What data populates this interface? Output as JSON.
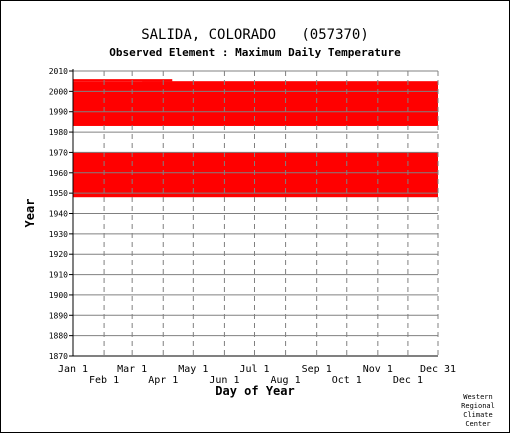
{
  "chart_data": {
    "type": "heatmap",
    "title": "SALIDA, COLORADO   (057370)",
    "subtitle": "Observed Element : Maximum Daily Temperature",
    "xlabel": "Day of Year",
    "ylabel": "Year",
    "x_range": [
      1,
      365
    ],
    "y_range": [
      1870,
      2010
    ],
    "grid": true,
    "x_ticks_upper": [
      {
        "label": "Jan 1",
        "day": 1
      },
      {
        "label": "Mar 1",
        "day": 60
      },
      {
        "label": "May 1",
        "day": 121
      },
      {
        "label": "Jul 1",
        "day": 182
      },
      {
        "label": "Sep 1",
        "day": 244
      },
      {
        "label": "Nov 1",
        "day": 305
      },
      {
        "label": "Dec 31",
        "day": 365
      }
    ],
    "x_ticks_lower": [
      {
        "label": "Feb 1",
        "day": 32
      },
      {
        "label": "Apr 1",
        "day": 91
      },
      {
        "label": "Jun 1",
        "day": 152
      },
      {
        "label": "Aug 1",
        "day": 213
      },
      {
        "label": "Oct 1",
        "day": 274
      },
      {
        "label": "Dec 1",
        "day": 335
      }
    ],
    "y_ticks": [
      1870,
      1880,
      1890,
      1900,
      1910,
      1920,
      1930,
      1940,
      1950,
      1960,
      1970,
      1980,
      1990,
      2000,
      2010
    ],
    "color": "#ff0000",
    "observed_blocks": [
      {
        "day_start": 1,
        "day_end": 365,
        "year_start": 1948,
        "year_end": 1970
      },
      {
        "day_start": 1,
        "day_end": 365,
        "year_start": 1983,
        "year_end": 2005
      },
      {
        "day_start": 1,
        "day_end": 100,
        "year_start": 2005,
        "year_end": 2006
      },
      {
        "day_start": 70,
        "day_end": 100,
        "year_start": 2004,
        "year_end": 2005
      }
    ]
  },
  "credit": [
    "Western",
    "Regional",
    "Climate",
    "Center"
  ],
  "colors": {
    "data": "#ff0000",
    "grid": "#808080",
    "axis": "#000000",
    "background": "#ffffff"
  }
}
